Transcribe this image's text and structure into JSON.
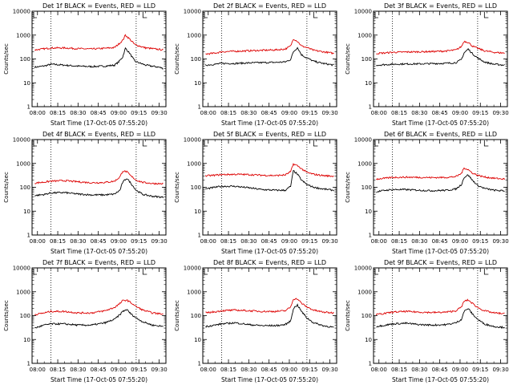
{
  "chart_data": [
    {
      "type": "line",
      "title": "Det 1f BLACK = Events, RED = LLD",
      "xlabel": "Start Time (17-Oct-05 07:55:20)",
      "ylabel": "Counts/sec",
      "ylim": [
        1,
        10000
      ],
      "yscale": "log",
      "y_tick_labels": [
        "1",
        "10",
        "100",
        "1000",
        "10000"
      ],
      "x_tick_labels": [
        "08:00",
        "08:15",
        "08:30",
        "08:45",
        "09:00",
        "09:15",
        "09:30"
      ],
      "dotted_vlines": [
        "08:10",
        "09:13"
      ],
      "top_marker": "09:18",
      "series": [
        {
          "name": "Events",
          "color": "#000000",
          "x": [
            "07:58",
            "08:06",
            "08:10",
            "08:20",
            "08:30",
            "08:40",
            "08:50",
            "08:57",
            "09:00",
            "09:03",
            "09:05",
            "09:08",
            "09:12",
            "09:20",
            "09:30",
            "09:33"
          ],
          "values": [
            45,
            52,
            60,
            55,
            50,
            48,
            50,
            55,
            75,
            120,
            280,
            180,
            80,
            55,
            45,
            40
          ]
        },
        {
          "name": "LLD",
          "color": "#dd0000",
          "x": [
            "07:58",
            "08:06",
            "08:10",
            "08:20",
            "08:30",
            "08:40",
            "08:50",
            "08:57",
            "09:00",
            "09:03",
            "09:05",
            "09:08",
            "09:12",
            "09:20",
            "09:30",
            "09:33"
          ],
          "values": [
            240,
            270,
            290,
            290,
            270,
            260,
            280,
            300,
            420,
            600,
            1000,
            700,
            400,
            290,
            250,
            240
          ]
        }
      ]
    },
    {
      "type": "line",
      "title": "Det 2f BLACK = Events, RED = LLD",
      "xlabel": "Start Time (17-Oct-05 07:55:20)",
      "ylabel": "Counts/sec",
      "ylim": [
        1,
        10000
      ],
      "yscale": "log",
      "y_tick_labels": [
        "1",
        "10",
        "100",
        "1000",
        "10000"
      ],
      "x_tick_labels": [
        "08:00",
        "08:15",
        "08:30",
        "08:45",
        "09:00",
        "09:15",
        "09:30"
      ],
      "dotted_vlines": [
        "08:10",
        "09:13"
      ],
      "top_marker": "09:18",
      "series": [
        {
          "name": "Events",
          "color": "#000000",
          "x": [
            "07:58",
            "08:05",
            "08:10",
            "08:20",
            "08:30",
            "08:40",
            "08:50",
            "08:57",
            "09:01",
            "09:03",
            "09:06",
            "09:09",
            "09:13",
            "09:18",
            "09:25",
            "09:33"
          ],
          "values": [
            55,
            60,
            65,
            65,
            68,
            70,
            72,
            75,
            95,
            200,
            300,
            150,
            110,
            80,
            65,
            55
          ]
        },
        {
          "name": "LLD",
          "color": "#dd0000",
          "x": [
            "07:58",
            "08:05",
            "08:10",
            "08:20",
            "08:30",
            "08:40",
            "08:50",
            "08:57",
            "09:01",
            "09:03",
            "09:06",
            "09:09",
            "09:13",
            "09:18",
            "09:25",
            "09:33"
          ],
          "values": [
            160,
            175,
            200,
            210,
            220,
            230,
            240,
            260,
            350,
            700,
            550,
            350,
            300,
            230,
            200,
            170
          ]
        }
      ]
    },
    {
      "type": "line",
      "title": "Det 3f BLACK = Events, RED = LLD",
      "xlabel": "Start Time (17-Oct-05 07:55:20)",
      "ylabel": "Counts/sec",
      "ylim": [
        1,
        10000
      ],
      "yscale": "log",
      "y_tick_labels": [
        "1",
        "10",
        "100",
        "1000",
        "10000"
      ],
      "x_tick_labels": [
        "08:00",
        "08:15",
        "08:30",
        "08:45",
        "09:00",
        "09:15",
        "09:30"
      ],
      "dotted_vlines": [
        "08:10",
        "09:13"
      ],
      "top_marker": "09:18",
      "series": [
        {
          "name": "Events",
          "color": "#000000",
          "x": [
            "07:58",
            "08:05",
            "08:10",
            "08:20",
            "08:30",
            "08:40",
            "08:50",
            "08:57",
            "09:01",
            "09:03",
            "09:06",
            "09:09",
            "09:13",
            "09:18",
            "09:25",
            "09:33"
          ],
          "values": [
            55,
            58,
            60,
            62,
            62,
            64,
            66,
            70,
            95,
            180,
            260,
            170,
            110,
            75,
            60,
            55
          ]
        },
        {
          "name": "LLD",
          "color": "#dd0000",
          "x": [
            "07:58",
            "08:05",
            "08:10",
            "08:20",
            "08:30",
            "08:40",
            "08:50",
            "08:57",
            "09:01",
            "09:03",
            "09:06",
            "09:09",
            "09:13",
            "09:18",
            "09:25",
            "09:33"
          ],
          "values": [
            170,
            180,
            190,
            195,
            200,
            205,
            215,
            240,
            330,
            550,
            500,
            350,
            280,
            220,
            190,
            175
          ]
        }
      ]
    },
    {
      "type": "line",
      "title": "Det 4f BLACK = Events, RED = LLD",
      "xlabel": "Start Time (17-Oct-05 07:55:20)",
      "ylabel": "Counts/sec",
      "ylim": [
        1,
        10000
      ],
      "yscale": "log",
      "y_tick_labels": [
        "1",
        "10",
        "100",
        "1000",
        "10000"
      ],
      "x_tick_labels": [
        "08:00",
        "08:15",
        "08:30",
        "08:45",
        "09:00",
        "09:15",
        "09:30"
      ],
      "dotted_vlines": [
        "08:10",
        "09:13"
      ],
      "top_marker": "09:18",
      "series": [
        {
          "name": "Events",
          "color": "#000000",
          "x": [
            "07:58",
            "08:05",
            "08:10",
            "08:20",
            "08:30",
            "08:40",
            "08:50",
            "08:57",
            "09:01",
            "09:03",
            "09:06",
            "09:09",
            "09:13",
            "09:18",
            "09:25",
            "09:33"
          ],
          "values": [
            45,
            50,
            58,
            60,
            52,
            48,
            48,
            52,
            75,
            160,
            240,
            150,
            75,
            50,
            42,
            38
          ]
        },
        {
          "name": "LLD",
          "color": "#dd0000",
          "x": [
            "07:58",
            "08:05",
            "08:10",
            "08:20",
            "08:30",
            "08:40",
            "08:50",
            "08:57",
            "09:01",
            "09:03",
            "09:06",
            "09:09",
            "09:13",
            "09:18",
            "09:25",
            "09:33"
          ],
          "values": [
            150,
            165,
            180,
            190,
            170,
            155,
            160,
            180,
            270,
            480,
            450,
            300,
            200,
            160,
            145,
            140
          ]
        }
      ]
    },
    {
      "type": "line",
      "title": "Det 5f BLACK = Events, RED = LLD",
      "xlabel": "Start Time (17-Oct-05 07:55:20)",
      "ylabel": "Counts/sec",
      "ylim": [
        1,
        10000
      ],
      "yscale": "log",
      "y_tick_labels": [
        "1",
        "10",
        "100",
        "1000",
        "10000"
      ],
      "x_tick_labels": [
        "08:00",
        "08:15",
        "08:30",
        "08:45",
        "09:00",
        "09:15",
        "09:30"
      ],
      "dotted_vlines": [
        "08:10",
        "09:13"
      ],
      "top_marker": "09:18",
      "series": [
        {
          "name": "Events",
          "color": "#000000",
          "x": [
            "07:58",
            "08:05",
            "08:10",
            "08:20",
            "08:30",
            "08:40",
            "08:50",
            "08:57",
            "09:01",
            "09:03",
            "09:06",
            "09:09",
            "09:13",
            "09:18",
            "09:25",
            "09:33"
          ],
          "values": [
            85,
            100,
            110,
            110,
            95,
            80,
            75,
            75,
            110,
            500,
            350,
            200,
            130,
            100,
            85,
            75
          ]
        },
        {
          "name": "LLD",
          "color": "#dd0000",
          "x": [
            "07:58",
            "08:05",
            "08:10",
            "08:20",
            "08:30",
            "08:40",
            "08:50",
            "08:57",
            "09:01",
            "09:03",
            "09:06",
            "09:09",
            "09:13",
            "09:18",
            "09:25",
            "09:33"
          ],
          "values": [
            300,
            320,
            340,
            350,
            340,
            320,
            310,
            330,
            450,
            950,
            800,
            600,
            420,
            350,
            310,
            290
          ]
        }
      ]
    },
    {
      "type": "line",
      "title": "Det 6f BLACK = Events, RED = LLD",
      "xlabel": "Start Time (17-Oct-05 07:55:20)",
      "ylabel": "Counts/sec",
      "ylim": [
        1,
        10000
      ],
      "yscale": "log",
      "y_tick_labels": [
        "1",
        "10",
        "100",
        "1000",
        "10000"
      ],
      "x_tick_labels": [
        "08:00",
        "08:15",
        "08:30",
        "08:45",
        "09:00",
        "09:15",
        "09:30"
      ],
      "dotted_vlines": [
        "08:10",
        "09:13"
      ],
      "top_marker": "09:18",
      "series": [
        {
          "name": "Events",
          "color": "#000000",
          "x": [
            "07:58",
            "08:05",
            "08:10",
            "08:20",
            "08:30",
            "08:40",
            "08:50",
            "08:57",
            "09:01",
            "09:03",
            "09:06",
            "09:09",
            "09:13",
            "09:18",
            "09:25",
            "09:33"
          ],
          "values": [
            65,
            75,
            80,
            80,
            75,
            72,
            75,
            85,
            130,
            260,
            330,
            200,
            120,
            90,
            75,
            70
          ]
        },
        {
          "name": "LLD",
          "color": "#dd0000",
          "x": [
            "07:58",
            "08:05",
            "08:10",
            "08:20",
            "08:30",
            "08:40",
            "08:50",
            "08:57",
            "09:01",
            "09:03",
            "09:06",
            "09:09",
            "09:13",
            "09:18",
            "09:25",
            "09:33"
          ],
          "values": [
            220,
            240,
            260,
            265,
            260,
            255,
            260,
            280,
            380,
            650,
            550,
            400,
            320,
            270,
            240,
            220
          ]
        }
      ]
    },
    {
      "type": "line",
      "title": "Det 7f BLACK = Events, RED = LLD",
      "xlabel": "Start Time (17-Oct-05 07:55:20)",
      "ylabel": "Counts/sec",
      "ylim": [
        1,
        10000
      ],
      "yscale": "log",
      "y_tick_labels": [
        "1",
        "10",
        "100",
        "1000",
        "10000"
      ],
      "x_tick_labels": [
        "08:00",
        "08:15",
        "08:30",
        "08:45",
        "09:00",
        "09:15",
        "09:30"
      ],
      "dotted_vlines": [
        "08:10",
        "09:13"
      ],
      "top_marker": "09:18",
      "series": [
        {
          "name": "Events",
          "color": "#000000",
          "x": [
            "07:58",
            "08:05",
            "08:10",
            "08:20",
            "08:30",
            "08:40",
            "08:50",
            "08:57",
            "09:01",
            "09:03",
            "09:06",
            "09:09",
            "09:13",
            "09:18",
            "09:25",
            "09:33"
          ],
          "values": [
            30,
            40,
            45,
            45,
            40,
            40,
            50,
            70,
            110,
            150,
            180,
            120,
            80,
            55,
            40,
            35
          ]
        },
        {
          "name": "LLD",
          "color": "#dd0000",
          "x": [
            "07:58",
            "08:05",
            "08:10",
            "08:20",
            "08:30",
            "08:40",
            "08:50",
            "08:57",
            "09:01",
            "09:03",
            "09:06",
            "09:09",
            "09:13",
            "09:18",
            "09:25",
            "09:33"
          ],
          "values": [
            110,
            130,
            150,
            150,
            130,
            130,
            160,
            220,
            320,
            420,
            450,
            350,
            240,
            170,
            130,
            115
          ]
        }
      ]
    },
    {
      "type": "line",
      "title": "Det 8f BLACK = Events, RED = LLD",
      "xlabel": "Start Time (17-Oct-05 07:55:20)",
      "ylabel": "Counts/sec",
      "ylim": [
        1,
        10000
      ],
      "yscale": "log",
      "y_tick_labels": [
        "1",
        "10",
        "100",
        "1000",
        "10000"
      ],
      "x_tick_labels": [
        "08:00",
        "08:15",
        "08:30",
        "08:45",
        "09:00",
        "09:15",
        "09:30"
      ],
      "dotted_vlines": [
        "08:10",
        "09:13"
      ],
      "top_marker": "09:18",
      "series": [
        {
          "name": "Events",
          "color": "#000000",
          "x": [
            "07:58",
            "08:05",
            "08:10",
            "08:20",
            "08:30",
            "08:40",
            "08:50",
            "08:57",
            "09:01",
            "09:03",
            "09:06",
            "09:09",
            "09:13",
            "09:18",
            "09:25",
            "09:33"
          ],
          "values": [
            35,
            40,
            45,
            50,
            42,
            38,
            38,
            42,
            60,
            200,
            280,
            150,
            80,
            50,
            38,
            32
          ]
        },
        {
          "name": "LLD",
          "color": "#dd0000",
          "x": [
            "07:58",
            "08:05",
            "08:10",
            "08:20",
            "08:30",
            "08:40",
            "08:50",
            "08:57",
            "09:01",
            "09:03",
            "09:06",
            "09:09",
            "09:13",
            "09:18",
            "09:25",
            "09:33"
          ],
          "values": [
            130,
            145,
            160,
            170,
            160,
            150,
            150,
            160,
            230,
            500,
            500,
            330,
            230,
            170,
            140,
            130
          ]
        }
      ]
    },
    {
      "type": "line",
      "title": "Det 9f BLACK = Events, RED = LLD",
      "xlabel": "Start Time (17-Oct-05 07:55:20)",
      "ylabel": "Counts/sec",
      "ylim": [
        1,
        10000
      ],
      "yscale": "log",
      "y_tick_labels": [
        "1",
        "10",
        "100",
        "1000",
        "10000"
      ],
      "x_tick_labels": [
        "08:00",
        "08:15",
        "08:30",
        "08:45",
        "09:00",
        "09:15",
        "09:30"
      ],
      "dotted_vlines": [
        "08:10",
        "09:13"
      ],
      "top_marker": "09:18",
      "series": [
        {
          "name": "Events",
          "color": "#000000",
          "x": [
            "07:58",
            "08:05",
            "08:10",
            "08:20",
            "08:30",
            "08:40",
            "08:50",
            "08:57",
            "09:01",
            "09:03",
            "09:06",
            "09:09",
            "09:13",
            "09:18",
            "09:25",
            "09:33"
          ],
          "values": [
            35,
            40,
            45,
            48,
            42,
            40,
            42,
            50,
            70,
            150,
            200,
            120,
            70,
            45,
            35,
            32
          ]
        },
        {
          "name": "LLD",
          "color": "#dd0000",
          "x": [
            "07:58",
            "08:05",
            "08:10",
            "08:20",
            "08:30",
            "08:40",
            "08:50",
            "08:57",
            "09:01",
            "09:03",
            "09:06",
            "09:09",
            "09:13",
            "09:18",
            "09:25",
            "09:33"
          ],
          "values": [
            110,
            125,
            140,
            150,
            140,
            135,
            140,
            160,
            230,
            400,
            450,
            330,
            220,
            160,
            130,
            120
          ]
        }
      ]
    }
  ]
}
